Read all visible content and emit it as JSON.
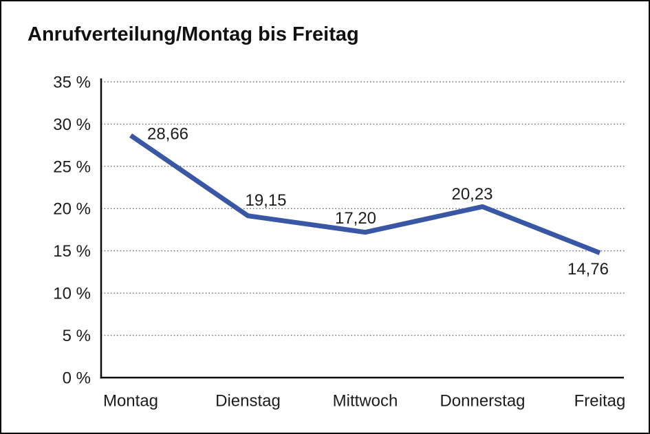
{
  "chart_data": {
    "type": "line",
    "title": "Anrufverteilung/Montag bis Freitag",
    "categories": [
      "Montag",
      "Dienstag",
      "Mittwoch",
      "Donnerstag",
      "Freitag"
    ],
    "values": [
      28.66,
      19.15,
      17.2,
      20.23,
      14.76
    ],
    "point_labels": [
      "28,66",
      "19,15",
      "17,20",
      "20,23",
      "14,76"
    ],
    "xlabel": "",
    "ylabel": "",
    "y_axis": {
      "min": 0,
      "max": 35,
      "step": 5,
      "unit": "%",
      "tick_labels": [
        "0 %",
        "5 %",
        "10 %",
        "15 %",
        "20 %",
        "25 %",
        "30 %",
        "35 %"
      ]
    },
    "grid": "horizontal-dotted",
    "legend": "none",
    "line_color": "#3A57A6",
    "axis_color": "#0a0a0a",
    "grid_color": "#6e6e6e",
    "text_color": "#1c1c1c"
  }
}
